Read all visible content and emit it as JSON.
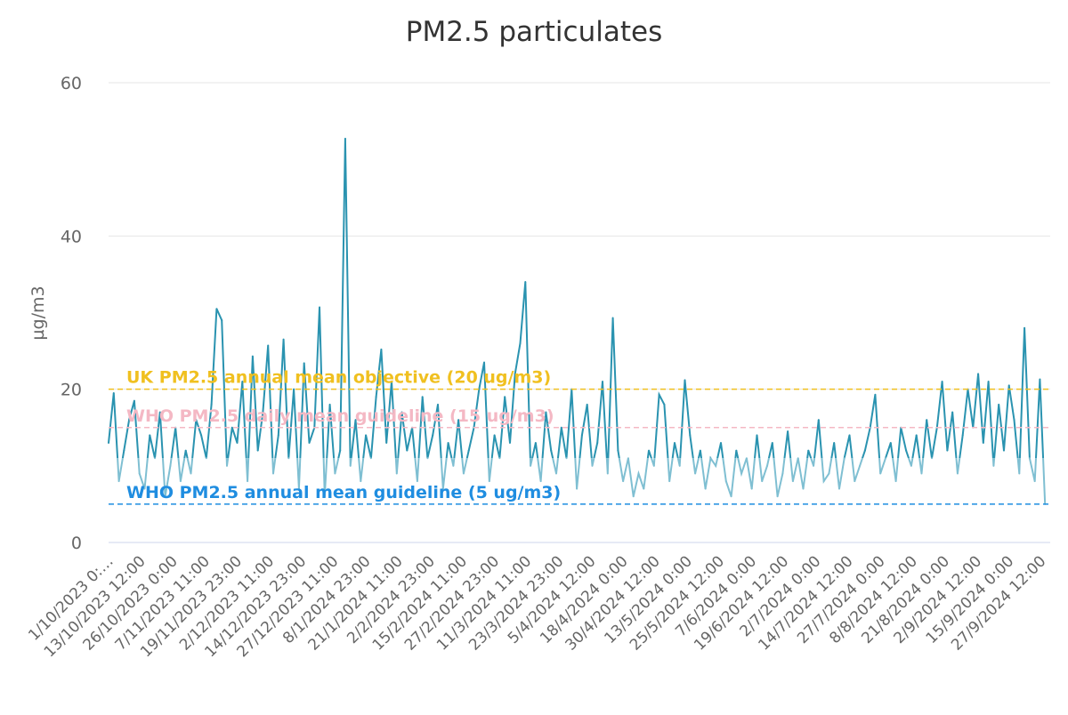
{
  "chart_data": {
    "type": "line",
    "title": "PM2.5 particulates",
    "ylabel": "µg/m3",
    "xlabel": "",
    "ylim": [
      0,
      60
    ],
    "yticks": [
      "0",
      "20",
      "40",
      "60"
    ],
    "grid": true,
    "x_start": "1/10/2023 0:00",
    "x_step_hours": 48,
    "x_end": "30/9/2024 23:00",
    "xtick_labels": [
      "1/10/2023 0:…",
      "13/10/2023 12:00",
      "26/10/2023 0:00",
      "7/11/2023 11:00",
      "19/11/2023 23:00",
      "2/12/2023 11:00",
      "14/12/2023 23:00",
      "27/12/2023 11:00",
      "8/1/2024 23:00",
      "21/1/2024 11:00",
      "2/2/2024 23:00",
      "15/2/2024 11:00",
      "27/2/2024 23:00",
      "11/3/2024 11:00",
      "23/3/2024 23:00",
      "5/4/2024 12:00",
      "18/4/2024 0:00",
      "30/4/2024 12:00",
      "13/5/2024 0:00",
      "25/5/2024 12:00",
      "7/6/2024 0:00",
      "19/6/2024 12:00",
      "2/7/2024 0:00",
      "14/7/2024 12:00",
      "27/7/2024 0:00",
      "8/8/2024 12:00",
      "21/8/2024 0:00",
      "2/9/2024 12:00",
      "15/9/2024 0:00",
      "27/9/2024 12:00"
    ],
    "zone_threshold": 11,
    "colors": {
      "above_threshold": "#2a93b0",
      "below_threshold": "#7fbfd2"
    },
    "series": [
      {
        "values": [
          13,
          19.5,
          8,
          12,
          16,
          18.5,
          9,
          7,
          14,
          11,
          17,
          6,
          10,
          15,
          8,
          12,
          9,
          16,
          14,
          11,
          18,
          30.5,
          29,
          10,
          15,
          13,
          21,
          8,
          24.3,
          12,
          17,
          25.7,
          9,
          14,
          26.5,
          11,
          20,
          7,
          23.4,
          13,
          15,
          30.7,
          6,
          18,
          9,
          12,
          52.7,
          10,
          16,
          8,
          14,
          11,
          19,
          25.2,
          13,
          21,
          9,
          17,
          12,
          15,
          8,
          19,
          11,
          14,
          18,
          7,
          13,
          10,
          16,
          9,
          12,
          15,
          20,
          23.5,
          8,
          14,
          11,
          19,
          13,
          22,
          26,
          34,
          10,
          13,
          8,
          17,
          12,
          9,
          15,
          11,
          20,
          7,
          14,
          18,
          10,
          13,
          21,
          9,
          29.3,
          12,
          8,
          11,
          6,
          9,
          7,
          12,
          10,
          19.3,
          18,
          8,
          13,
          10,
          21.2,
          14,
          9,
          12,
          7,
          11,
          10,
          13,
          8,
          6,
          12,
          9,
          11,
          7,
          14,
          8,
          10,
          13,
          6,
          9,
          14.5,
          8,
          11,
          7,
          12,
          10,
          16,
          8,
          9,
          13,
          7,
          11,
          14,
          8,
          10,
          12,
          15,
          19.3,
          9,
          11,
          13,
          8,
          15,
          12,
          10,
          14,
          9,
          16,
          11,
          15,
          21,
          12,
          17,
          9,
          14,
          20,
          15,
          22,
          13,
          21,
          10,
          18,
          12,
          20.5,
          16,
          9,
          28,
          11,
          8,
          21.3,
          5
        ]
      }
    ],
    "plot_lines": [
      {
        "label": "UK PM2.5 annual mean objective (20 ug/m3)",
        "value": 20,
        "color": "#f0c020"
      },
      {
        "label": "WHO PM2.5 daily mean guideline (15 ug/m3)",
        "value": 15,
        "color": "#f4b8c4"
      },
      {
        "label": "WHO PM2.5 annual mean guideline (5 ug/m3)",
        "value": 5,
        "color": "#1f8de0"
      }
    ]
  }
}
